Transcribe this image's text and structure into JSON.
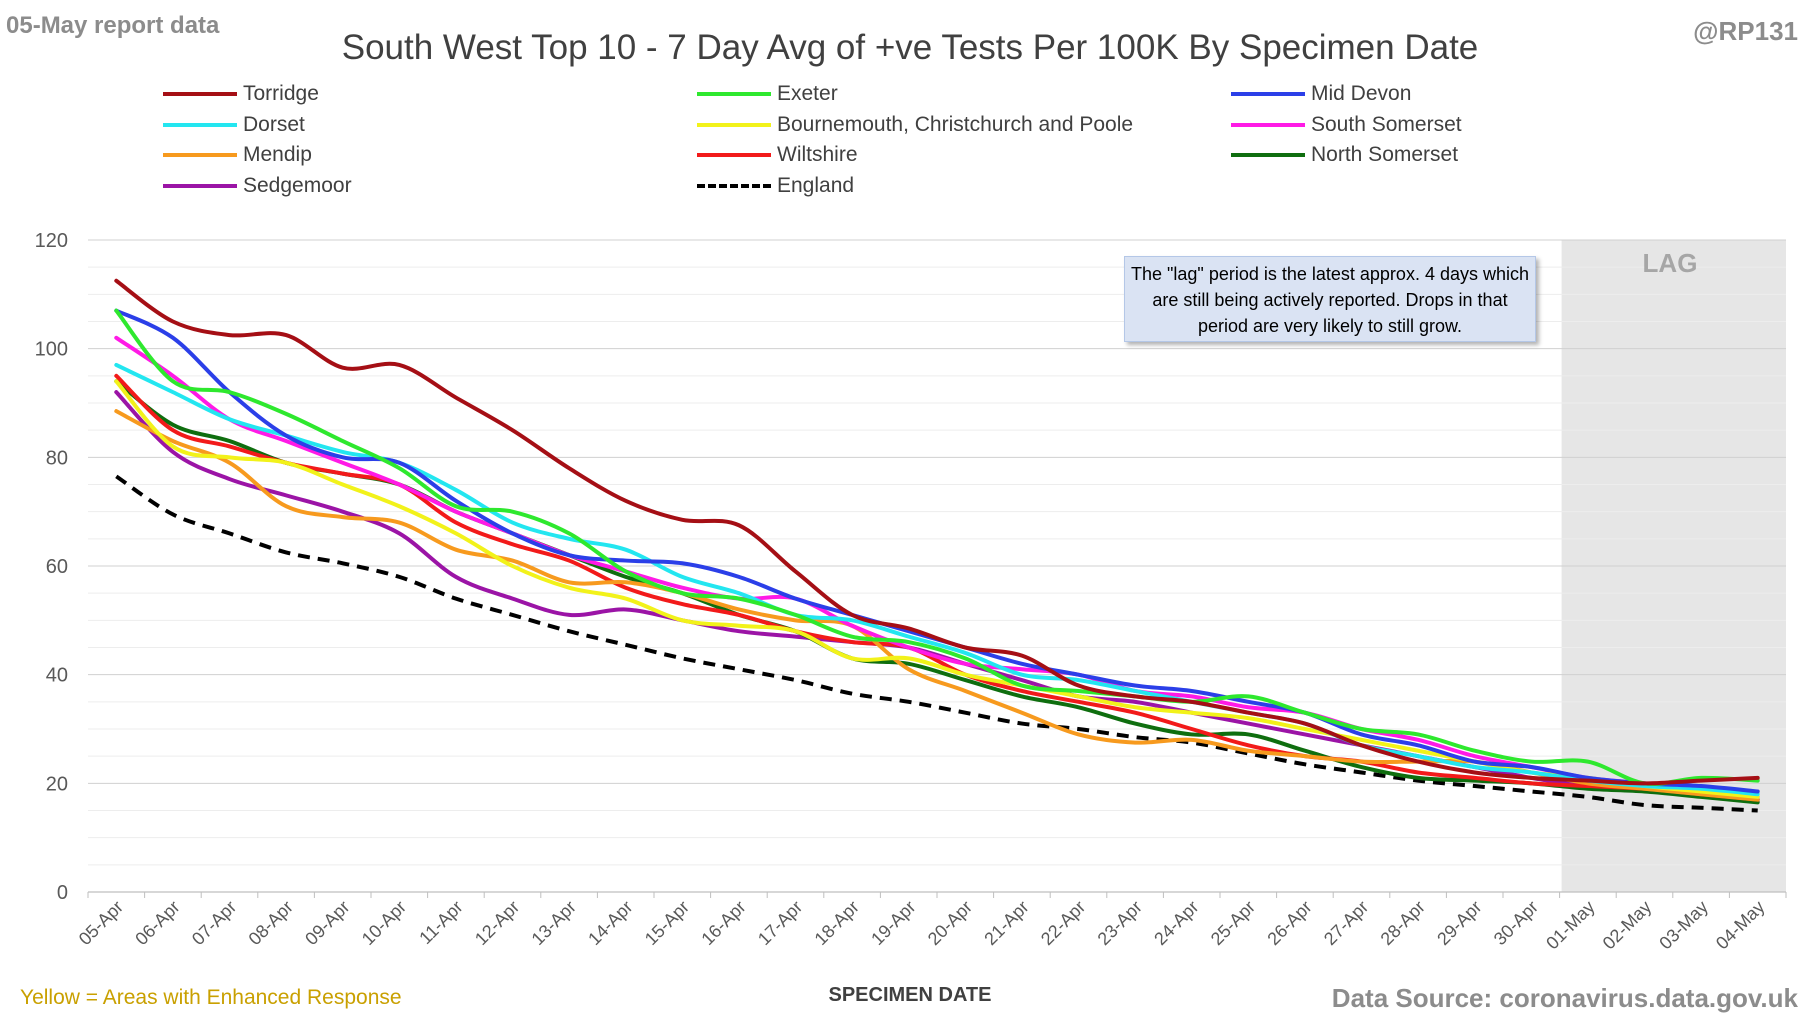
{
  "header": {
    "report_date": "05-May report data",
    "handle": "@RP131",
    "title": "South West Top 10 - 7 Day Avg of +ve Tests Per 100K By Specimen Date"
  },
  "footer": {
    "note": "Yellow = Areas with Enhanced Response",
    "source": "Data Source: coronavirus.data.gov.uk"
  },
  "annotation": {
    "text": "The \"lag\" period is the latest approx. 4 days which are still being actively reported. Drops in that period are very likely to still grow.",
    "lag_label": "LAG"
  },
  "chart_data": {
    "type": "line",
    "title": "South West Top 10 - 7 Day Avg of +ve Tests Per 100K By Specimen Date",
    "xlabel": "SPECIMEN DATE",
    "ylabel": "",
    "ylim": [
      0,
      120
    ],
    "yticks": [
      0,
      20,
      40,
      60,
      80,
      100,
      120
    ],
    "grid": true,
    "legend_position": "top",
    "lag_region": {
      "from": "01-May",
      "to": "04-May"
    },
    "categories": [
      "05-Apr",
      "06-Apr",
      "07-Apr",
      "08-Apr",
      "09-Apr",
      "10-Apr",
      "11-Apr",
      "12-Apr",
      "13-Apr",
      "14-Apr",
      "15-Apr",
      "16-Apr",
      "17-Apr",
      "18-Apr",
      "19-Apr",
      "20-Apr",
      "21-Apr",
      "22-Apr",
      "23-Apr",
      "24-Apr",
      "25-Apr",
      "26-Apr",
      "27-Apr",
      "28-Apr",
      "29-Apr",
      "30-Apr",
      "01-May",
      "02-May",
      "03-May",
      "04-May"
    ],
    "series": [
      {
        "name": "Torridge",
        "color": "#a50f15",
        "dash": false,
        "values": [
          112.5,
          105,
          102.5,
          102.5,
          96.5,
          97,
          91,
          85,
          78,
          72,
          68.5,
          67.5,
          59,
          51,
          48.5,
          45,
          43.5,
          38,
          36,
          35,
          33,
          31,
          27,
          24,
          22,
          21,
          20.5,
          20,
          20.5,
          21
        ]
      },
      {
        "name": "Exeter",
        "color": "#2ee82e",
        "dash": false,
        "values": [
          107,
          94,
          92,
          88,
          83,
          78,
          71,
          70,
          66,
          59,
          55,
          54,
          51,
          47,
          46,
          43,
          38,
          37,
          36,
          35,
          36,
          33,
          30,
          29,
          26,
          24,
          24,
          20,
          21,
          20.5
        ]
      },
      {
        "name": "Mid Devon",
        "color": "#2b3fe8",
        "dash": false,
        "values": [
          107,
          102,
          92,
          84,
          80,
          79,
          72,
          66,
          62,
          61,
          60.5,
          58,
          54,
          51,
          48,
          45,
          42,
          40,
          38,
          37,
          35,
          33,
          29,
          27,
          24,
          23,
          21,
          20,
          19.5,
          18.5
        ]
      },
      {
        "name": "Dorset",
        "color": "#23e6f0",
        "dash": false,
        "values": [
          97,
          92,
          87,
          84,
          81,
          79,
          74,
          68,
          65,
          63,
          58,
          55,
          51,
          50,
          47,
          44,
          40,
          39,
          37,
          35,
          33,
          31,
          27,
          25,
          23,
          22,
          20.5,
          19.5,
          19,
          18
        ]
      },
      {
        "name": "Bournemouth, Christchurch and Poole",
        "color": "#f2f21a",
        "dash": false,
        "values": [
          94,
          82,
          80,
          79,
          75,
          71,
          66,
          60,
          56,
          54,
          50,
          49,
          48,
          43,
          43,
          40,
          38,
          36,
          34,
          33,
          32,
          30,
          28,
          26,
          24,
          22,
          21,
          19.5,
          18.5,
          17.5
        ]
      },
      {
        "name": "South Somerset",
        "color": "#ff1ae6",
        "dash": false,
        "values": [
          102,
          95,
          87,
          83,
          79,
          75,
          70,
          66,
          62,
          59,
          56,
          54,
          54,
          49,
          45,
          42,
          41,
          40,
          37,
          36,
          34,
          33,
          30,
          28,
          25,
          23,
          21,
          20,
          19,
          17.5
        ]
      },
      {
        "name": "Mendip",
        "color": "#f79a1e",
        "dash": false,
        "values": [
          88.5,
          83,
          79,
          71,
          69,
          68,
          63,
          61,
          57,
          57,
          55,
          52,
          50,
          49,
          41,
          37,
          33,
          29,
          27.5,
          28,
          26,
          25,
          24,
          24,
          24,
          22,
          20,
          19,
          18,
          17
        ]
      },
      {
        "name": "Wiltshire",
        "color": "#f21a1a",
        "dash": false,
        "values": [
          95,
          85,
          82,
          79,
          77,
          75,
          68,
          64,
          61,
          56,
          53,
          51,
          48,
          46,
          45,
          40,
          37,
          35,
          33,
          30,
          27,
          25,
          24,
          22,
          21,
          20,
          19.5,
          19,
          18,
          17
        ]
      },
      {
        "name": "North Somerset",
        "color": "#0f6e0f",
        "dash": false,
        "values": [
          94,
          86,
          83,
          79,
          77,
          75,
          70,
          66,
          62,
          58,
          55,
          51,
          48,
          43,
          42,
          39,
          36,
          34,
          31,
          29,
          29,
          26,
          23,
          21,
          20.5,
          20,
          19,
          18.5,
          17.5,
          16.5
        ]
      },
      {
        "name": "Sedgemoor",
        "color": "#9b14a6",
        "dash": false,
        "values": [
          92,
          81,
          76,
          73,
          70,
          66,
          58,
          54,
          51,
          52,
          50,
          48,
          47,
          46,
          45,
          42,
          39,
          36,
          35,
          33,
          31,
          29,
          27,
          25,
          23,
          21,
          19.5,
          19,
          18,
          17
        ]
      },
      {
        "name": "England",
        "color": "#000000",
        "dash": true,
        "values": [
          76.5,
          69.5,
          66,
          62.5,
          60.5,
          58,
          54,
          51,
          48,
          45.5,
          43,
          41,
          39,
          36.5,
          35,
          33,
          31,
          30,
          28.5,
          27.5,
          25.5,
          23.5,
          22,
          20.5,
          19.5,
          18.5,
          17.5,
          16,
          15.5,
          15
        ]
      }
    ]
  }
}
